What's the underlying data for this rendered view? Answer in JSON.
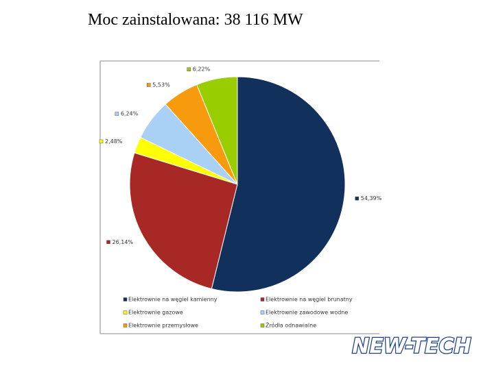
{
  "chart_data": {
    "type": "pie",
    "title": "Moc zainstalowana:  38 116 MW",
    "categories": [
      "Elektrownie na węgiel kamienny",
      "Elektrownie na węgiel brunatny",
      "Elektrownie gazowe",
      "Elektrownie zawodowe wodne",
      "Elektrownie przemysłowe",
      "Źródła odnawialne"
    ],
    "values": [
      54.39,
      26.14,
      2.48,
      6.24,
      5.53,
      6.22
    ],
    "value_labels": [
      "54,39%",
      "26,14%",
      "2,48%",
      "6,24%",
      "5,53%",
      "6,22%"
    ],
    "colors": [
      "#12305c",
      "#a82826",
      "#ffff00",
      "#a9d0f5",
      "#f79a0e",
      "#9acd00"
    ]
  },
  "logo": "NEW-TECH"
}
